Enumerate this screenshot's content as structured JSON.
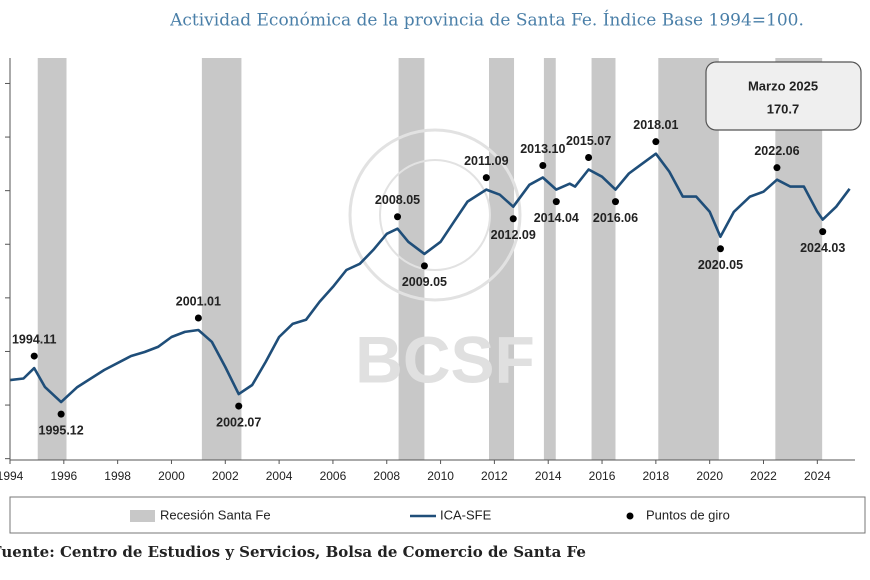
{
  "chart_data": {
    "type": "line",
    "title": "Actividad Económica de la provincia de Santa Fe. Índice Base 1994=100.",
    "source": "Fuente: Centro de Estudios y Servicios, Bolsa de Comercio de Santa Fe",
    "watermark": "BCSF",
    "xlim": [
      1994,
      2025.4
    ],
    "xticks": [
      1994,
      1996,
      1998,
      2000,
      2002,
      2004,
      2006,
      2008,
      2010,
      2012,
      2014,
      2016,
      2018,
      2020,
      2022,
      2024
    ],
    "ylim": [
      69.5,
      219.5
    ],
    "yticks": [
      70,
      90,
      110,
      130,
      150,
      170,
      190,
      210
    ],
    "grid": false,
    "recessions": {
      "name": "Recesión Santa Fe",
      "color": "#c8c8c8",
      "ranges": [
        [
          1995.03,
          1996.1
        ],
        [
          2001.13,
          2002.6
        ],
        [
          2008.44,
          2009.4
        ],
        [
          2011.8,
          2012.73
        ],
        [
          2013.84,
          2014.28
        ],
        [
          2015.61,
          2016.5
        ],
        [
          2018.09,
          2020.34
        ],
        [
          2022.44,
          2024.18
        ]
      ]
    },
    "series": [
      {
        "name": "ICA-SFE",
        "color": "#1f4e79",
        "style": "line",
        "x": [
          1994.0,
          1994.5,
          1994.9,
          1995.3,
          1995.9,
          1996.5,
          1997.5,
          1998.5,
          1999.0,
          1999.5,
          2000.0,
          2000.5,
          2001.0,
          2001.5,
          2002.0,
          2002.5,
          2003.0,
          2003.5,
          2004.0,
          2004.5,
          2005.0,
          2005.5,
          2006.0,
          2006.5,
          2007.0,
          2007.5,
          2008.0,
          2008.4,
          2008.8,
          2009.4,
          2010.0,
          2010.5,
          2011.0,
          2011.7,
          2012.2,
          2012.7,
          2013.3,
          2013.8,
          2014.3,
          2014.8,
          2015.0,
          2015.5,
          2016.0,
          2016.5,
          2017.0,
          2017.5,
          2018.0,
          2018.5,
          2019.0,
          2019.5,
          2020.0,
          2020.4,
          2020.9,
          2021.5,
          2022.0,
          2022.5,
          2023.0,
          2023.5,
          2024.0,
          2024.2,
          2024.7,
          2025.2
        ],
        "values": [
          99.3,
          99.9,
          103.8,
          96.7,
          91.1,
          96.7,
          103.1,
          108.3,
          109.8,
          111.7,
          115.4,
          117.3,
          118.0,
          113.6,
          104.2,
          94.1,
          97.5,
          106.1,
          115.4,
          120.3,
          121.8,
          128.5,
          134.1,
          140.4,
          142.7,
          147.9,
          153.9,
          155.8,
          150.9,
          146.4,
          150.9,
          158.4,
          165.9,
          170.4,
          168.5,
          164.0,
          172.2,
          174.9,
          170.4,
          172.6,
          171.5,
          177.9,
          175.2,
          170.4,
          176.4,
          180.1,
          183.8,
          177.1,
          167.8,
          167.8,
          162.1,
          152.8,
          162.1,
          167.8,
          169.6,
          174.1,
          171.5,
          171.5,
          162.1,
          159.2,
          164.0,
          170.7
        ]
      },
      {
        "name": "Puntos de giro",
        "color": "#000000",
        "style": "points",
        "x": [
          1994.9,
          1995.9,
          2001.0,
          2002.5,
          2008.4,
          2009.4,
          2011.7,
          2012.7,
          2013.8,
          2014.3,
          2015.5,
          2016.5,
          2018.0,
          2020.4,
          2022.5,
          2024.2
        ],
        "values": [
          103.8,
          91.1,
          118.0,
          94.1,
          155.8,
          146.4,
          170.4,
          164.0,
          174.9,
          170.4,
          177.9,
          170.4,
          183.8,
          152.8,
          174.1,
          159.2
        ],
        "labels": [
          "1994.11",
          "1995.12",
          "2001.01",
          "2002.07",
          "2008.05",
          "2009.05",
          "2011.09",
          "2012.09",
          "2013.10",
          "2014.04",
          "2015.07",
          "2016.06",
          "2018.01",
          "2020.05",
          "2022.06",
          "2024.03"
        ]
      }
    ],
    "annotation": {
      "title": "Marzo 2025",
      "value": 170.7
    }
  }
}
